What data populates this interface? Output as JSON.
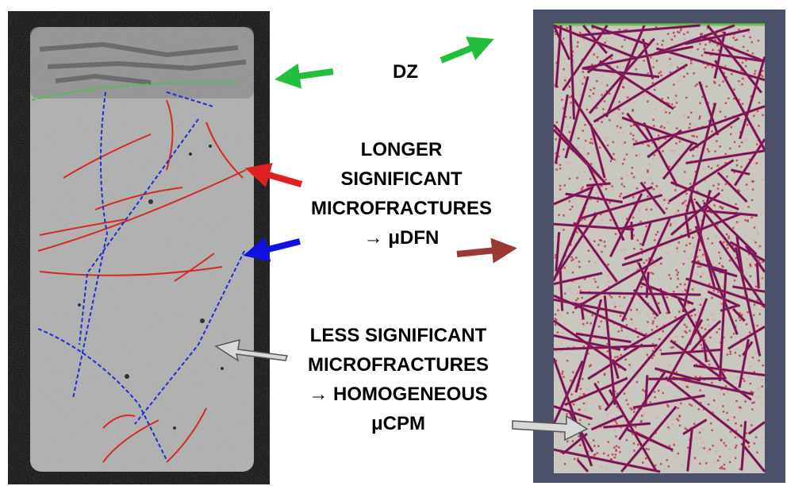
{
  "labels": {
    "dz": "DZ",
    "longer_line1": "LONGER",
    "longer_line2": "SIGNIFICANT",
    "longer_line3": "MICROFRACTURES",
    "longer_line4": "→ μDFN",
    "less_line1": "LESS SIGNIFICANT",
    "less_line2": "MICROFRACTURES",
    "less_line3": "→ HOMOGENEOUS",
    "less_line4": "μCPM"
  },
  "colors": {
    "dz_arrow": "#22c03a",
    "dz_boundary": "#3ec83e",
    "long_fracture": "#e02020",
    "long_fracture_trace_red": "#d42a22",
    "long_fracture_trace_blue": "#1a2fd6",
    "mu_dfn_arrow": "#9a3a32",
    "less_arrow": "#d8d8d8",
    "matrix_gray": "#c8c8c0",
    "dfn_red": "#c01830",
    "dfn_purple": "#3a1e8c",
    "frame": "#4a5168"
  }
}
